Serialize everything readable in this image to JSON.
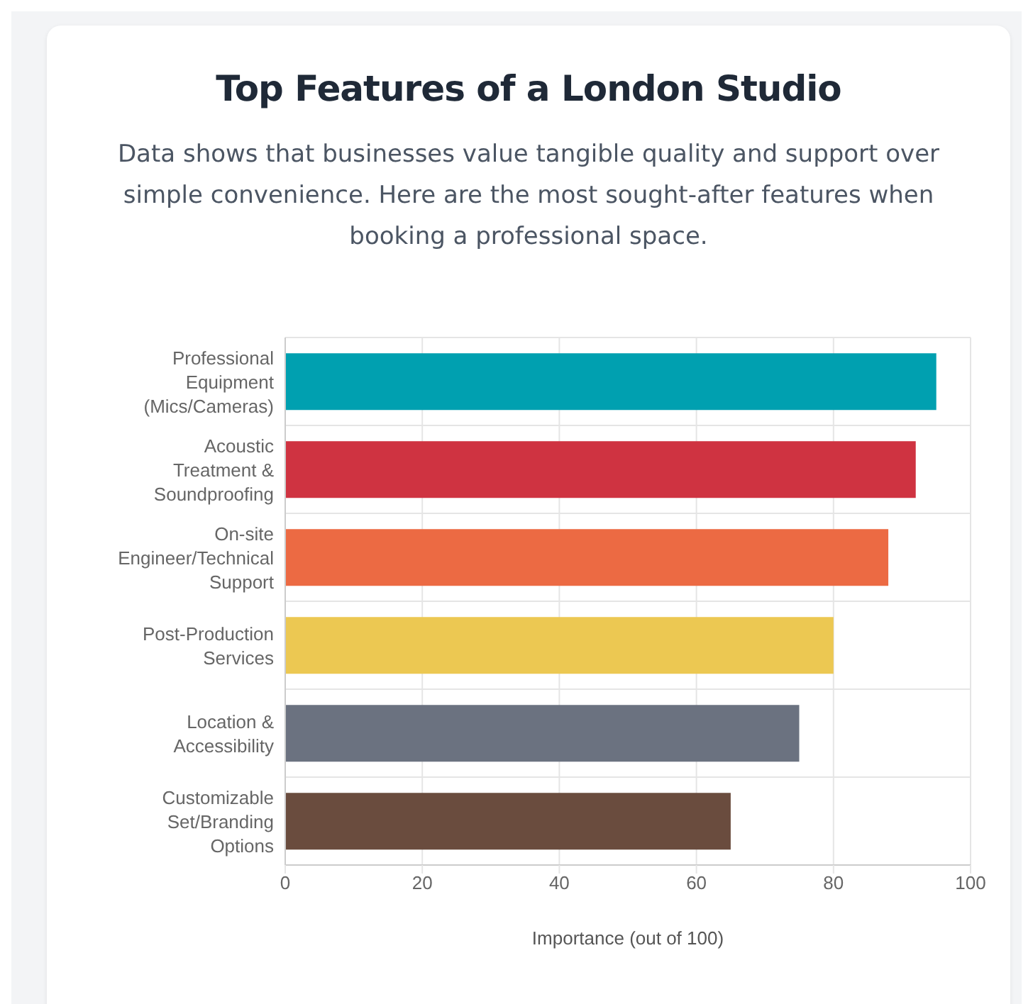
{
  "chart_data": {
    "type": "bar",
    "orientation": "horizontal",
    "title": "Top Features of a London Studio",
    "subtitle": "Data shows that businesses value tangible quality and support over simple convenience. Here are the most sought-after features when booking a professional space.",
    "categories": [
      "Professional\nEquipment\n(Mics/Cameras)",
      "Acoustic\nTreatment &\nSoundproofing",
      "On-site\nEngineer/Technical\nSupport",
      "Post-Production\nServices",
      "Location &\nAccessibility",
      "Customizable\nSet/Branding\nOptions"
    ],
    "values": [
      95,
      92,
      88,
      80,
      75,
      65
    ],
    "colors": [
      "#00a0b0",
      "#cf3341",
      "#ec6a43",
      "#ecc852",
      "#6b7280",
      "#6a4c3e"
    ],
    "xlabel": "Importance (out of 100)",
    "xlim": [
      0,
      100
    ],
    "xticks": [
      0,
      20,
      40,
      60,
      80,
      100
    ],
    "grid": true
  }
}
